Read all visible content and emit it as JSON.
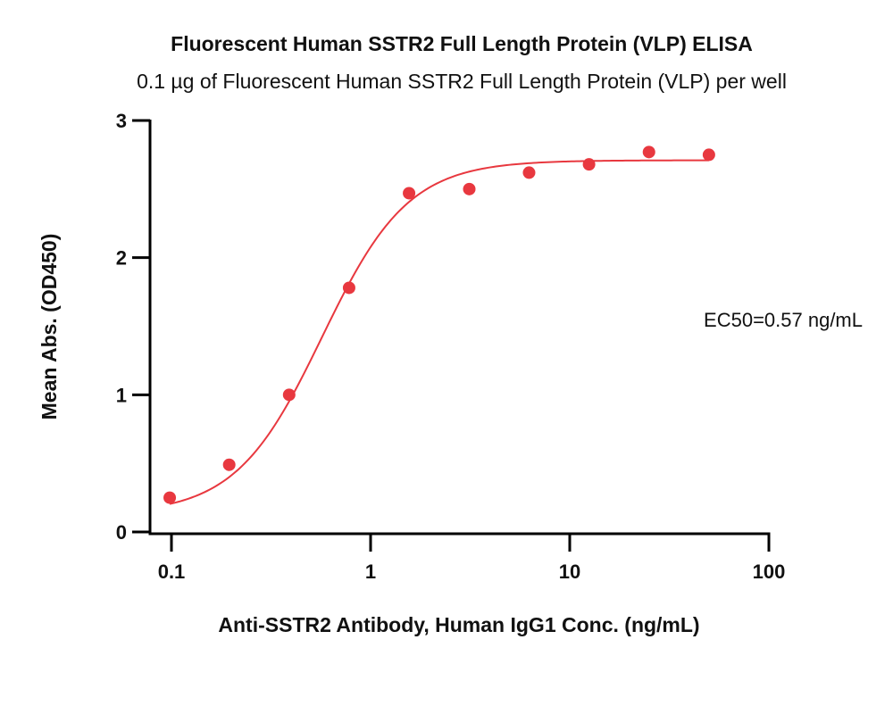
{
  "chart_data": {
    "type": "scatter",
    "title": "Fluorescent Human SSTR2 Full Length Protein (VLP) ELISA",
    "subtitle": "0.1 µg of Fluorescent Human SSTR2 Full Length Protein (VLP) per well",
    "xlabel": "Anti-SSTR2 Antibody, Human IgG1 Conc. (ng/mL)",
    "ylabel": "Mean Abs. (OD450)",
    "x_scale": "log",
    "xlim": [
      0.09,
      100
    ],
    "ylim": [
      0,
      3
    ],
    "x_ticks": [
      0.1,
      1,
      10,
      100
    ],
    "x_tick_labels": [
      "0.1",
      "1",
      "10",
      "100"
    ],
    "y_ticks": [
      0,
      1,
      2,
      3
    ],
    "y_tick_labels": [
      "0",
      "1",
      "2",
      "3"
    ],
    "grid": false,
    "annotation": "EC50=0.57 ng/mL",
    "colors": {
      "series": "#e8383f",
      "axis": "#000000"
    },
    "series": [
      {
        "points": [
          {
            "x": 0.098,
            "y": 0.25
          },
          {
            "x": 0.195,
            "y": 0.49
          },
          {
            "x": 0.39,
            "y": 1.0
          },
          {
            "x": 0.78,
            "y": 1.78
          },
          {
            "x": 1.56,
            "y": 2.47
          },
          {
            "x": 3.13,
            "y": 2.5
          },
          {
            "x": 6.25,
            "y": 2.62
          },
          {
            "x": 12.5,
            "y": 2.68
          },
          {
            "x": 25,
            "y": 2.77
          },
          {
            "x": 50,
            "y": 2.75
          }
        ],
        "fit": {
          "model": "4PL",
          "bottom": 0.13,
          "top": 2.71,
          "ec50": 0.57,
          "hill": 2.0
        }
      }
    ]
  }
}
